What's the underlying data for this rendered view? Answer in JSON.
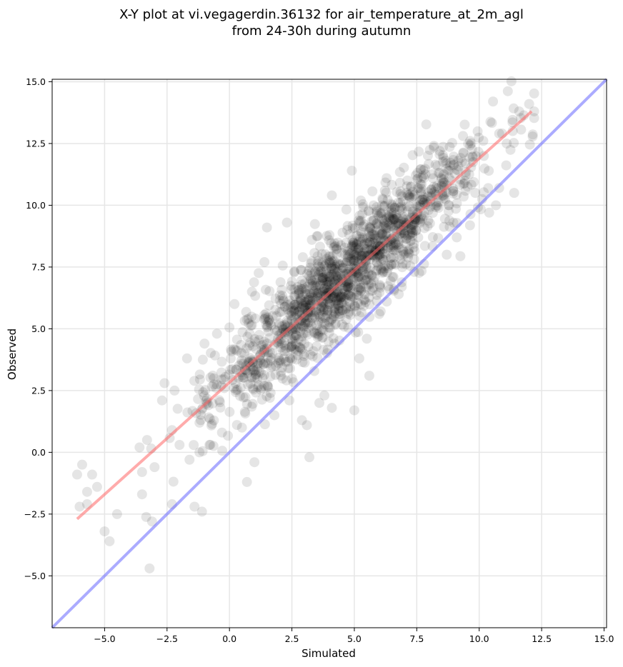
{
  "title_lines": [
    "X-Y plot at vi.vegagerdin.36132 for air_temperature_at_2m_agl",
    "from 24-30h during autumn"
  ],
  "chart_data": {
    "type": "scatter",
    "title": "X-Y plot at vi.vegagerdin.36132 for air_temperature_at_2m_agl from 24-30h during autumn",
    "xlabel": "Simulated",
    "ylabel": "Observed",
    "xlim": [
      -7.1,
      15.1
    ],
    "ylim": [
      -7.1,
      15.1
    ],
    "xticks": [
      -5.0,
      -2.5,
      0.0,
      2.5,
      5.0,
      7.5,
      10.0,
      12.5,
      15.0
    ],
    "yticks": [
      -5.0,
      -2.5,
      0.0,
      2.5,
      5.0,
      7.5,
      10.0,
      12.5,
      15.0
    ],
    "xtick_labels": [
      "−5.0",
      "−2.5",
      "0.0",
      "2.5",
      "5.0",
      "7.5",
      "10.0",
      "12.5",
      "15.0"
    ],
    "ytick_labels": [
      "−5.0",
      "−2.5",
      "0.0",
      "2.5",
      "5.0",
      "7.5",
      "10.0",
      "12.5",
      "15.0"
    ],
    "grid": true,
    "colors": {
      "points": "#000000",
      "fit_line": "#ff6666",
      "identity_line": "#6666ff"
    },
    "fit_line": {
      "x": [
        -6.1,
        12.1
      ],
      "y": [
        -2.7,
        13.8
      ]
    },
    "identity_line": {
      "x": [
        -7.1,
        15.1
      ],
      "y": [
        -7.1,
        15.1
      ]
    },
    "point_summary": {
      "count": 1500,
      "x_range": [
        -6.1,
        12.2
      ],
      "relationship": "observed ≈ 0.91 * simulated + 2.85"
    },
    "outlier_points": [
      {
        "x": -6.1,
        "y": -0.9
      },
      {
        "x": -6.0,
        "y": -2.2
      },
      {
        "x": -5.9,
        "y": -0.5
      },
      {
        "x": -5.7,
        "y": -1.6
      },
      {
        "x": -5.7,
        "y": -2.1
      },
      {
        "x": -5.5,
        "y": -0.9
      },
      {
        "x": -5.3,
        "y": -1.4
      },
      {
        "x": -5.0,
        "y": -3.2
      },
      {
        "x": -4.8,
        "y": -3.6
      },
      {
        "x": -4.5,
        "y": -2.5
      },
      {
        "x": -3.6,
        "y": 0.2
      },
      {
        "x": -3.5,
        "y": -0.8
      },
      {
        "x": -3.5,
        "y": -1.7
      },
      {
        "x": -3.3,
        "y": 0.5
      },
      {
        "x": -3.2,
        "y": -4.7
      },
      {
        "x": -3.1,
        "y": -2.8
      },
      {
        "x": -3.0,
        "y": -0.6
      },
      {
        "x": -2.7,
        "y": 2.1
      },
      {
        "x": -2.6,
        "y": 2.8
      },
      {
        "x": -2.3,
        "y": -2.1
      },
      {
        "x": -2.2,
        "y": 2.5
      },
      {
        "x": -1.4,
        "y": -2.2
      },
      {
        "x": -1.1,
        "y": -2.4
      },
      {
        "x": 0.7,
        "y": -1.2
      },
      {
        "x": 1.0,
        "y": -0.4
      },
      {
        "x": 3.2,
        "y": -0.2
      },
      {
        "x": 3.1,
        "y": 1.1
      },
      {
        "x": 4.2,
        "y": 4.4
      },
      {
        "x": 5.0,
        "y": 1.7
      },
      {
        "x": 5.6,
        "y": 3.1
      },
      {
        "x": 5.5,
        "y": 4.6
      },
      {
        "x": 6.3,
        "y": 6.1
      },
      {
        "x": 7.4,
        "y": 7.3
      },
      {
        "x": 8.7,
        "y": 8.0
      },
      {
        "x": 9.1,
        "y": 8.7
      },
      {
        "x": 10.4,
        "y": 9.7
      },
      {
        "x": 11.4,
        "y": 10.5
      },
      {
        "x": 10.8,
        "y": 10.7
      },
      {
        "x": 10.8,
        "y": 12.9
      },
      {
        "x": 11.6,
        "y": 13.8
      },
      {
        "x": 12.0,
        "y": 14.1
      },
      {
        "x": 12.2,
        "y": 13.8
      },
      {
        "x": 11.1,
        "y": 12.5
      },
      {
        "x": 4.9,
        "y": 11.4
      },
      {
        "x": 4.1,
        "y": 10.4
      },
      {
        "x": 1.5,
        "y": 9.1
      },
      {
        "x": 2.3,
        "y": 9.3
      },
      {
        "x": 3.3,
        "y": 8.6
      },
      {
        "x": 1.4,
        "y": 7.7
      },
      {
        "x": 0.9,
        "y": 6.5
      },
      {
        "x": 0.2,
        "y": 6.0
      },
      {
        "x": -0.5,
        "y": 4.8
      },
      {
        "x": -1.0,
        "y": 4.4
      },
      {
        "x": -1.7,
        "y": 3.8
      },
      {
        "x": -2.3,
        "y": 0.9
      },
      {
        "x": -2.0,
        "y": 0.3
      },
      {
        "x": -1.6,
        "y": -0.3
      },
      {
        "x": -1.2,
        "y": 0.0
      },
      {
        "x": -0.8,
        "y": 0.3
      },
      {
        "x": -0.3,
        "y": 0.8
      },
      {
        "x": 0.5,
        "y": 1.0
      },
      {
        "x": 1.8,
        "y": 1.5
      },
      {
        "x": 2.4,
        "y": 2.1
      },
      {
        "x": 2.9,
        "y": 1.3
      },
      {
        "x": 3.6,
        "y": 2.0
      },
      {
        "x": 4.1,
        "y": 1.8
      },
      {
        "x": 3.8,
        "y": 2.3
      },
      {
        "x": 5.2,
        "y": 3.8
      },
      {
        "x": 6.0,
        "y": 5.6
      },
      {
        "x": 6.9,
        "y": 6.7
      }
    ]
  }
}
